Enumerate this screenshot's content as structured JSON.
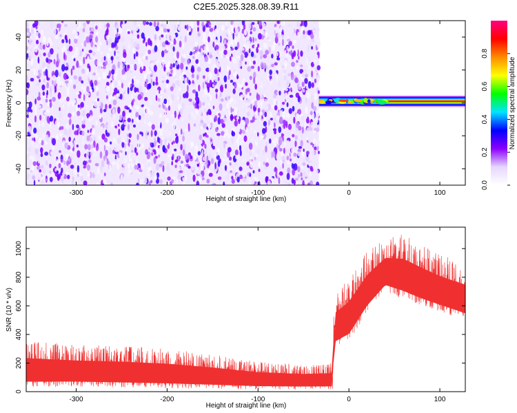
{
  "title": "C2E5.2025.328.08.39.R11",
  "chart_data": [
    {
      "type": "heatmap",
      "xlabel": "Height of straight line (km)",
      "ylabel": "Frequency (Hz)",
      "xlim": [
        -355,
        128
      ],
      "ylim": [
        -50,
        50
      ],
      "xticks": [
        -300,
        -200,
        -100,
        0,
        100
      ],
      "yticks": [
        -40,
        -20,
        0,
        20,
        40
      ],
      "colorbar": {
        "label": "Normalized spectral amplitude",
        "range": [
          0.0,
          1.0
        ],
        "ticks": [
          0.0,
          0.2,
          0.4,
          0.6,
          0.8
        ],
        "colors": [
          "#ffffff",
          "#e6d6ff",
          "#8b00ff",
          "#0000ff",
          "#00e5ff",
          "#00ff00",
          "#ffff00",
          "#ff8c00",
          "#ff0000",
          "#ff0080"
        ]
      },
      "regions": [
        {
          "x_range": [
            -355,
            -33
          ],
          "y_range": [
            -50,
            50
          ],
          "amplitude_range": [
            0.02,
            0.3
          ]
        },
        {
          "x_range": [
            -33,
            128
          ],
          "y_range": [
            -2,
            4
          ],
          "center_frequency": 1,
          "amplitude_range": [
            0.3,
            1.0
          ]
        }
      ]
    },
    {
      "type": "line",
      "xlabel": "Height of straight line (km)",
      "ylabel": "SNR (10 * v/v)",
      "xlim": [
        -355,
        128
      ],
      "ylim": [
        0,
        1150
      ],
      "xticks": [
        -300,
        -200,
        -100,
        0,
        100
      ],
      "yticks": [
        0,
        200,
        400,
        600,
        800,
        1000
      ],
      "series": [
        {
          "color": "#f03030",
          "points": [
            {
              "x": -355,
              "lower": 30,
              "upper": 360
            },
            {
              "x": -300,
              "lower": 35,
              "upper": 330
            },
            {
              "x": -250,
              "lower": 30,
              "upper": 320
            },
            {
              "x": -200,
              "lower": 25,
              "upper": 300
            },
            {
              "x": -150,
              "lower": 20,
              "upper": 260
            },
            {
              "x": -100,
              "lower": 15,
              "upper": 210
            },
            {
              "x": -50,
              "lower": 15,
              "upper": 190
            },
            {
              "x": -18,
              "lower": 15,
              "upper": 200
            },
            {
              "x": -16,
              "lower": 300,
              "upper": 700
            },
            {
              "x": 0,
              "lower": 350,
              "upper": 800
            },
            {
              "x": 20,
              "lower": 550,
              "upper": 980
            },
            {
              "x": 40,
              "lower": 700,
              "upper": 1080
            },
            {
              "x": 60,
              "lower": 650,
              "upper": 1100
            },
            {
              "x": 80,
              "lower": 600,
              "upper": 1030
            },
            {
              "x": 100,
              "lower": 560,
              "upper": 960
            },
            {
              "x": 128,
              "lower": 500,
              "upper": 900
            }
          ]
        }
      ]
    }
  ]
}
